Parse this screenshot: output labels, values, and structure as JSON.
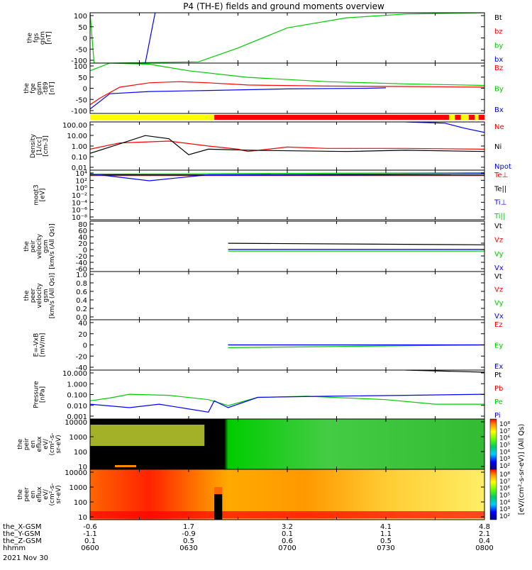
{
  "title": "P4 (TH-E) fields and ground moments overview",
  "colors": {
    "black": "#000000",
    "red": "#ff0000",
    "green": "#00cc00",
    "blue": "#0000ff",
    "yellow": "#ffff00"
  },
  "bar_colors": {
    "default": "#ff0000",
    "fast": "#ffff00"
  },
  "chart_data": [
    {
      "type": "line",
      "id": "fgs",
      "ylabel": [
        "the",
        "fgs",
        "gsm",
        "[nT]"
      ],
      "yticks": [
        "100",
        "50",
        "0",
        "-50",
        "-100"
      ],
      "ylim": [
        -100,
        100
      ],
      "series": [
        {
          "name": "Bt",
          "color": "black",
          "points": []
        },
        {
          "name": "bz",
          "color": "red",
          "points": []
        },
        {
          "name": "by",
          "color": "green",
          "points": [
            [
              6.0,
              100
            ],
            [
              6.02,
              -100
            ],
            [
              6.1,
              -100
            ],
            [
              6.55,
              -95
            ],
            [
              6.75,
              -40
            ],
            [
              7.0,
              40
            ],
            [
              7.3,
              80
            ],
            [
              7.6,
              95
            ],
            [
              8.0,
              100
            ]
          ]
        },
        {
          "name": "bx",
          "color": "blue",
          "points": [
            [
              6.28,
              -100
            ],
            [
              6.33,
              100
            ]
          ]
        }
      ]
    },
    {
      "type": "line",
      "id": "fge",
      "ylabel": [
        "the",
        "fge",
        "gsm",
        "-t89",
        "[nT]"
      ],
      "yticks": [
        "100",
        "50",
        "0",
        "-50",
        "-100"
      ],
      "ylim": [
        -120,
        110
      ],
      "series": [
        {
          "name": "Bz",
          "color": "red",
          "points": [
            [
              6.0,
              -80
            ],
            [
              6.05,
              -50
            ],
            [
              6.15,
              0
            ],
            [
              6.3,
              20
            ],
            [
              6.45,
              25
            ],
            [
              6.6,
              20
            ],
            [
              6.8,
              10
            ],
            [
              7.2,
              5
            ],
            [
              7.6,
              3
            ],
            [
              8.0,
              0
            ]
          ]
        },
        {
          "name": "By",
          "color": "green",
          "points": [
            [
              6.0,
              75
            ],
            [
              6.1,
              110
            ],
            [
              6.3,
              105
            ],
            [
              6.5,
              75
            ],
            [
              6.8,
              45
            ],
            [
              7.2,
              25
            ],
            [
              7.6,
              15
            ],
            [
              8.0,
              8
            ]
          ]
        },
        {
          "name": "Bx",
          "color": "blue",
          "points": [
            [
              6.0,
              -100
            ],
            [
              6.1,
              -30
            ],
            [
              6.3,
              -20
            ],
            [
              6.6,
              -15
            ],
            [
              7.0,
              -8
            ],
            [
              7.4,
              -5
            ],
            [
              7.5,
              -3
            ]
          ]
        }
      ]
    },
    {
      "type": "bar",
      "id": "mode",
      "segments": [
        [
          6.0,
          6.63,
          "fast"
        ],
        [
          6.63,
          7.82,
          "default"
        ],
        [
          7.82,
          7.85,
          "fast"
        ],
        [
          7.85,
          7.88,
          "default"
        ],
        [
          7.88,
          7.92,
          "fast"
        ],
        [
          7.92,
          7.95,
          "default"
        ],
        [
          7.95,
          7.97,
          "fast"
        ],
        [
          7.97,
          8.0,
          "default"
        ]
      ]
    },
    {
      "type": "line",
      "id": "density",
      "log": true,
      "ylabel": [
        "Density",
        "[1/cc]",
        "[cm-3]"
      ],
      "yticks": [
        "100.00",
        "10.00",
        "1.00",
        "0.10",
        "0.01"
      ],
      "ylim": [
        0.005,
        200
      ],
      "series": [
        {
          "name": "Ne",
          "color": "red",
          "points": [
            [
              6.0,
              0.5
            ],
            [
              6.15,
              2
            ],
            [
              6.4,
              3
            ],
            [
              6.6,
              1
            ],
            [
              6.75,
              0.5
            ],
            [
              6.8,
              0.3
            ],
            [
              7.0,
              0.8
            ],
            [
              7.2,
              0.6
            ],
            [
              7.6,
              0.6
            ],
            [
              8.0,
              0.5
            ]
          ]
        },
        {
          "name": "Ni",
          "color": "black",
          "points": [
            [
              6.0,
              0.2
            ],
            [
              6.1,
              0.8
            ],
            [
              6.28,
              10
            ],
            [
              6.4,
              5
            ],
            [
              6.5,
              0.15
            ],
            [
              6.6,
              0.5
            ],
            [
              6.8,
              0.4
            ],
            [
              7.3,
              0.3
            ],
            [
              7.6,
              0.4
            ],
            [
              8.0,
              0.3
            ]
          ]
        },
        {
          "name": "Npot",
          "color": "blue",
          "points": [
            [
              7.6,
              200
            ],
            [
              7.8,
              150
            ],
            [
              7.9,
              50
            ],
            [
              8.0,
              20
            ]
          ]
        }
      ]
    },
    {
      "type": "line",
      "id": "moqt",
      "log": true,
      "ylabel": [
        "moqt3",
        "[eV]"
      ],
      "yticks": [
        "10⁴",
        "10²",
        "10⁰",
        "10⁻²",
        "10⁻⁴",
        "10⁻⁶",
        "10⁻⁸"
      ],
      "ylim": [
        1e-09,
        100000.0
      ],
      "series": [
        {
          "name": "Te⊥",
          "color": "red",
          "points": [
            [
              6.0,
              3000
            ],
            [
              8.0,
              3000
            ]
          ]
        },
        {
          "name": "Te||",
          "color": "black",
          "points": [
            [
              6.0,
              5000
            ],
            [
              8.0,
              4000
            ]
          ]
        },
        {
          "name": "Ti⊥",
          "color": "blue",
          "points": [
            [
              6.0,
              10000
            ],
            [
              6.3,
              100
            ],
            [
              6.6,
              5000
            ],
            [
              8.0,
              10000
            ]
          ]
        },
        {
          "name": "Ti||",
          "color": "green",
          "points": [
            [
              6.0,
              8000
            ],
            [
              8.0,
              20000
            ]
          ]
        }
      ]
    },
    {
      "type": "line",
      "id": "peir_vel",
      "ylabel": [
        "the",
        "peir",
        "velocity",
        "gsm",
        "[km/s (All Qs)]"
      ],
      "yticks": [
        "80",
        "60",
        "40",
        "20",
        "0",
        "-20",
        "-40",
        "-60"
      ],
      "ylim": [
        -70,
        90
      ],
      "series": [
        {
          "name": "Vt",
          "color": "black",
          "points": [
            [
              6.7,
              20
            ],
            [
              8.0,
              15
            ]
          ]
        },
        {
          "name": "Vz",
          "color": "red",
          "points": [
            [
              6.7,
              0
            ],
            [
              8.0,
              0
            ]
          ]
        },
        {
          "name": "Vy",
          "color": "green",
          "points": [
            [
              6.7,
              -5
            ],
            [
              8.0,
              -5
            ]
          ]
        },
        {
          "name": "Vx",
          "color": "blue",
          "points": [
            [
              6.7,
              0
            ],
            [
              8.0,
              0
            ]
          ]
        }
      ]
    },
    {
      "type": "line",
      "id": "peer_vel",
      "ylabel": [
        "the",
        "peer",
        "velocity",
        "gsm",
        "[km/s (All Qs)]"
      ],
      "yticks": [
        "1.0",
        "0.8",
        "0.6",
        "0.4",
        "0.2",
        "0.0"
      ],
      "ylim": [
        0,
        1.0
      ],
      "series": [
        {
          "name": "Vt",
          "color": "black",
          "points": []
        },
        {
          "name": "Vz",
          "color": "red",
          "points": []
        },
        {
          "name": "Vy",
          "color": "green",
          "points": []
        },
        {
          "name": "Vx",
          "color": "blue",
          "points": []
        }
      ]
    },
    {
      "type": "line",
      "id": "efield",
      "ylabel": [
        "E=-VxB",
        "[mV/m]"
      ],
      "yticks": [
        "40",
        "20",
        "0",
        "-20",
        "-40"
      ],
      "ylim": [
        -45,
        45
      ],
      "series": [
        {
          "name": "Ez",
          "color": "red",
          "points": [
            [
              6.7,
              0
            ],
            [
              8.0,
              0
            ]
          ]
        },
        {
          "name": "Ey",
          "color": "green",
          "points": [
            [
              6.7,
              -5
            ],
            [
              8.0,
              0
            ]
          ]
        },
        {
          "name": "Ex",
          "color": "blue",
          "points": [
            [
              6.7,
              0
            ],
            [
              8.0,
              0
            ]
          ]
        }
      ]
    },
    {
      "type": "line",
      "id": "pressure",
      "log": true,
      "ylabel": [
        "Pressure",
        "[nPa]"
      ],
      "yticks": [
        "10.000",
        "1.000",
        "0.100",
        "0.010",
        "0.001"
      ],
      "ylim": [
        0.001,
        20
      ],
      "series": [
        {
          "name": "Pt",
          "color": "black",
          "points": [
            [
              7.6,
              20
            ],
            [
              8.0,
              13
            ]
          ]
        },
        {
          "name": "Pb",
          "color": "red",
          "points": []
        },
        {
          "name": "Pe",
          "color": "green",
          "points": [
            [
              6.0,
              0.04
            ],
            [
              6.1,
              0.07
            ],
            [
              6.2,
              0.15
            ],
            [
              6.4,
              0.12
            ],
            [
              6.6,
              0.05
            ],
            [
              6.7,
              0.015
            ],
            [
              6.85,
              0.08
            ],
            [
              7.1,
              0.1
            ],
            [
              7.5,
              0.05
            ],
            [
              7.75,
              0.02
            ],
            [
              8.0,
              0.02
            ]
          ]
        },
        {
          "name": "Pi",
          "color": "blue",
          "points": [
            [
              6.0,
              0.02
            ],
            [
              6.2,
              0.01
            ],
            [
              6.35,
              0.02
            ],
            [
              6.6,
              0.004
            ],
            [
              6.63,
              0.04
            ],
            [
              6.7,
              0.01
            ],
            [
              6.85,
              0.08
            ],
            [
              7.2,
              0.1
            ],
            [
              7.6,
              0.12
            ],
            [
              8.0,
              0.15
            ]
          ]
        }
      ]
    },
    {
      "type": "heatmap",
      "id": "peir_en",
      "ylabel": [
        "the",
        "peir",
        "en",
        "eflux",
        "eV/",
        "(cm²-s-",
        "sr-eV)"
      ],
      "yticks": [
        "10000",
        "1000",
        "100",
        "10"
      ]
    },
    {
      "type": "heatmap",
      "id": "peer_en",
      "ylabel": [
        "the",
        "peer",
        "en",
        "eflux",
        "eV/",
        "(cm²-s-",
        "sr-eV)"
      ],
      "yticks": [
        "10000",
        "1000",
        "100",
        "10"
      ]
    }
  ],
  "colorbar": {
    "label": "[eV/(cm²-s-sr-eV)] (All Qs)",
    "ticks_top": [
      "10⁸",
      "10⁷",
      "10⁶",
      "10⁵",
      "10⁴",
      "10³",
      "10²"
    ],
    "ticks_bottom": [
      "10⁸",
      "10⁷",
      "10⁶",
      "10⁵",
      "10⁴",
      "10³",
      "10²"
    ]
  },
  "xaxis": {
    "time_range": [
      6.0,
      8.0
    ],
    "rows": [
      {
        "label": "the_X-GSM",
        "values": [
          "-0.6",
          "1.7",
          "3.2",
          "4.1",
          "4.8"
        ]
      },
      {
        "label": "the_Y-GSM",
        "values": [
          "-1.1",
          "-0.9",
          "0.1",
          "1.1",
          "2.1"
        ]
      },
      {
        "label": "the_Z-GSM",
        "values": [
          "0.1",
          "0.5",
          "0.6",
          "0.5",
          "0.4"
        ]
      },
      {
        "label": "hhmm",
        "values": [
          "0600",
          "0630",
          "0700",
          "0730",
          "0800"
        ]
      }
    ],
    "date": "2021 Nov 30"
  }
}
